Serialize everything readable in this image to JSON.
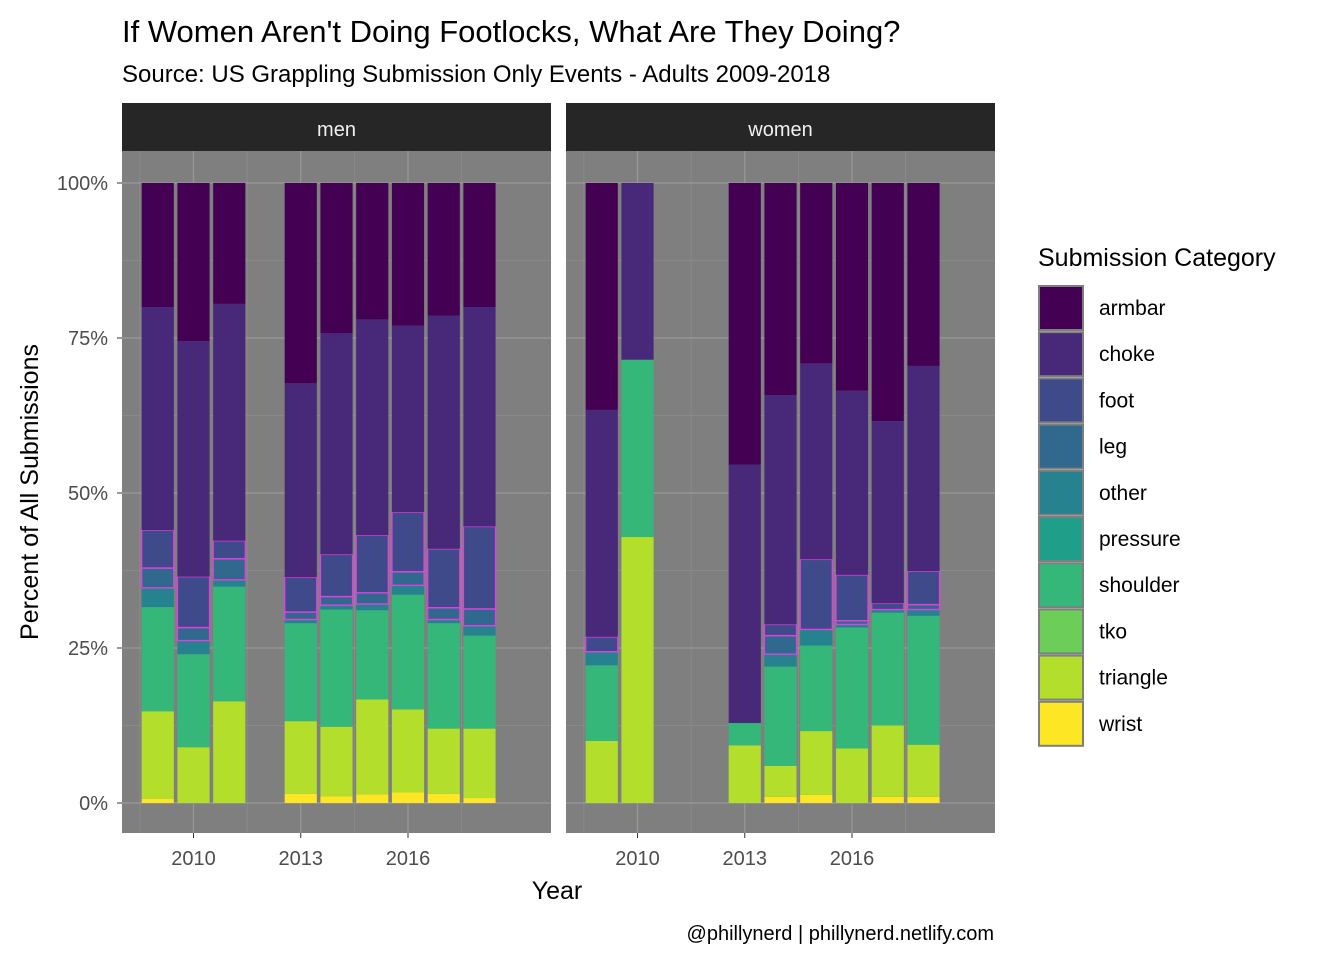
{
  "chart_data": {
    "type": "bar",
    "stacked": true,
    "title": "If Women Aren't Doing Footlocks, What Are They Doing?",
    "subtitle": "Source: US Grappling Submission Only Events - Adults 2009-2018",
    "xlabel": "Year",
    "ylabel": "Percent of All Submissions",
    "caption": "@phillynerd | phillynerd.netlify.com",
    "x_ticks": [
      2010,
      2013,
      2016
    ],
    "y_ticks": [
      "0%",
      "25%",
      "50%",
      "75%",
      "100%"
    ],
    "ylim": [
      0,
      100
    ],
    "legend": {
      "title": "Submission Category",
      "position": "right",
      "items": [
        {
          "label": "armbar",
          "color": "#440154"
        },
        {
          "label": "choke",
          "color": "#482878"
        },
        {
          "label": "foot",
          "color": "#3E4A89"
        },
        {
          "label": "leg",
          "color": "#31688E"
        },
        {
          "label": "other",
          "color": "#26828E"
        },
        {
          "label": "pressure",
          "color": "#1F9E89"
        },
        {
          "label": "shoulder",
          "color": "#35B779"
        },
        {
          "label": "tko",
          "color": "#6DCD59"
        },
        {
          "label": "triangle",
          "color": "#B4DE2C"
        },
        {
          "label": "wrist",
          "color": "#FDE725"
        }
      ]
    },
    "highlight": {
      "categories": [
        "foot",
        "leg"
      ],
      "outline_color": "#E040E0"
    },
    "panels": [
      {
        "name": "men",
        "bars": [
          {
            "year": 2009,
            "wrist": 0.7,
            "triangle": 14.1,
            "tko": 0,
            "shoulder": 16.8,
            "pressure": 0,
            "other": 3.1,
            "leg": 3.2,
            "foot": 6.1,
            "choke": 36.0,
            "armbar": 20.0
          },
          {
            "year": 2010,
            "wrist": 0,
            "triangle": 9.0,
            "tko": 0,
            "shoulder": 15.0,
            "pressure": 0,
            "other": 2.2,
            "leg": 2.1,
            "foot": 8.2,
            "choke": 38.0,
            "armbar": 25.5
          },
          {
            "year": 2011,
            "wrist": 0,
            "triangle": 16.4,
            "tko": 0,
            "shoulder": 18.5,
            "pressure": 0,
            "other": 1.1,
            "leg": 3.4,
            "foot": 2.9,
            "choke": 38.2,
            "armbar": 19.5
          },
          {
            "year": 2013,
            "wrist": 1.5,
            "triangle": 11.7,
            "tko": 0,
            "shoulder": 15.8,
            "pressure": 0,
            "other": 0.6,
            "leg": 1.2,
            "foot": 5.6,
            "choke": 31.3,
            "armbar": 32.3
          },
          {
            "year": 2014,
            "wrist": 1.1,
            "triangle": 11.2,
            "tko": 0,
            "shoulder": 18.9,
            "pressure": 0,
            "other": 0.7,
            "leg": 1.4,
            "foot": 6.8,
            "choke": 35.7,
            "armbar": 24.2
          },
          {
            "year": 2015,
            "wrist": 1.4,
            "triangle": 15.3,
            "tko": 0,
            "shoulder": 14.4,
            "pressure": 0,
            "other": 1.0,
            "leg": 1.8,
            "foot": 9.3,
            "choke": 34.8,
            "armbar": 22.0
          },
          {
            "year": 2016,
            "wrist": 1.7,
            "triangle": 13.4,
            "tko": 0,
            "shoulder": 18.5,
            "pressure": 0,
            "other": 1.5,
            "leg": 2.2,
            "foot": 9.6,
            "choke": 30.1,
            "armbar": 23.0
          },
          {
            "year": 2017,
            "wrist": 1.5,
            "triangle": 10.5,
            "tko": 0,
            "shoulder": 17.0,
            "pressure": 0,
            "other": 0.6,
            "leg": 1.9,
            "foot": 9.5,
            "choke": 37.6,
            "armbar": 21.4
          },
          {
            "year": 2018,
            "wrist": 0.8,
            "triangle": 11.2,
            "tko": 0,
            "shoulder": 15.0,
            "pressure": 0,
            "other": 1.6,
            "leg": 2.7,
            "foot": 13.3,
            "choke": 35.4,
            "armbar": 20.0
          }
        ]
      },
      {
        "name": "women",
        "bars": [
          {
            "year": 2009,
            "wrist": 0,
            "triangle": 10.0,
            "tko": 0,
            "shoulder": 12.2,
            "pressure": 0,
            "other": 2.2,
            "leg": 0,
            "foot": 2.4,
            "choke": 36.6,
            "armbar": 36.6
          },
          {
            "year": 2010,
            "wrist": 0,
            "triangle": 42.9,
            "tko": 0,
            "shoulder": 28.6,
            "pressure": 0,
            "other": 0,
            "leg": 0,
            "foot": 0,
            "choke": 28.5,
            "armbar": 0
          },
          {
            "year": 2013,
            "wrist": 0,
            "triangle": 9.3,
            "tko": 0,
            "shoulder": 3.6,
            "pressure": 0,
            "other": 0,
            "leg": 0,
            "foot": 0,
            "choke": 41.7,
            "armbar": 45.4
          },
          {
            "year": 2014,
            "wrist": 1.0,
            "triangle": 5.0,
            "tko": 0,
            "shoulder": 16.0,
            "pressure": 0,
            "other": 2.0,
            "leg": 3.0,
            "foot": 1.8,
            "choke": 37.0,
            "armbar": 34.2
          },
          {
            "year": 2015,
            "wrist": 1.3,
            "triangle": 10.3,
            "tko": 0,
            "shoulder": 13.8,
            "pressure": 0,
            "other": 2.6,
            "leg": 0,
            "foot": 11.3,
            "choke": 31.6,
            "armbar": 29.1
          },
          {
            "year": 2016,
            "wrist": 0,
            "triangle": 8.8,
            "tko": 0,
            "shoulder": 19.5,
            "pressure": 0,
            "other": 0.5,
            "leg": 0.6,
            "foot": 7.4,
            "choke": 29.7,
            "armbar": 33.5
          },
          {
            "year": 2017,
            "wrist": 1.0,
            "triangle": 11.5,
            "tko": 0,
            "shoulder": 18.2,
            "pressure": 0,
            "other": 0.5,
            "leg": 0,
            "foot": 1.0,
            "choke": 29.4,
            "armbar": 38.4
          },
          {
            "year": 2018,
            "wrist": 1.0,
            "triangle": 8.4,
            "tko": 0,
            "shoulder": 20.8,
            "pressure": 0,
            "other": 1.0,
            "leg": 0.8,
            "foot": 5.4,
            "choke": 33.1,
            "armbar": 29.5
          }
        ]
      }
    ]
  }
}
